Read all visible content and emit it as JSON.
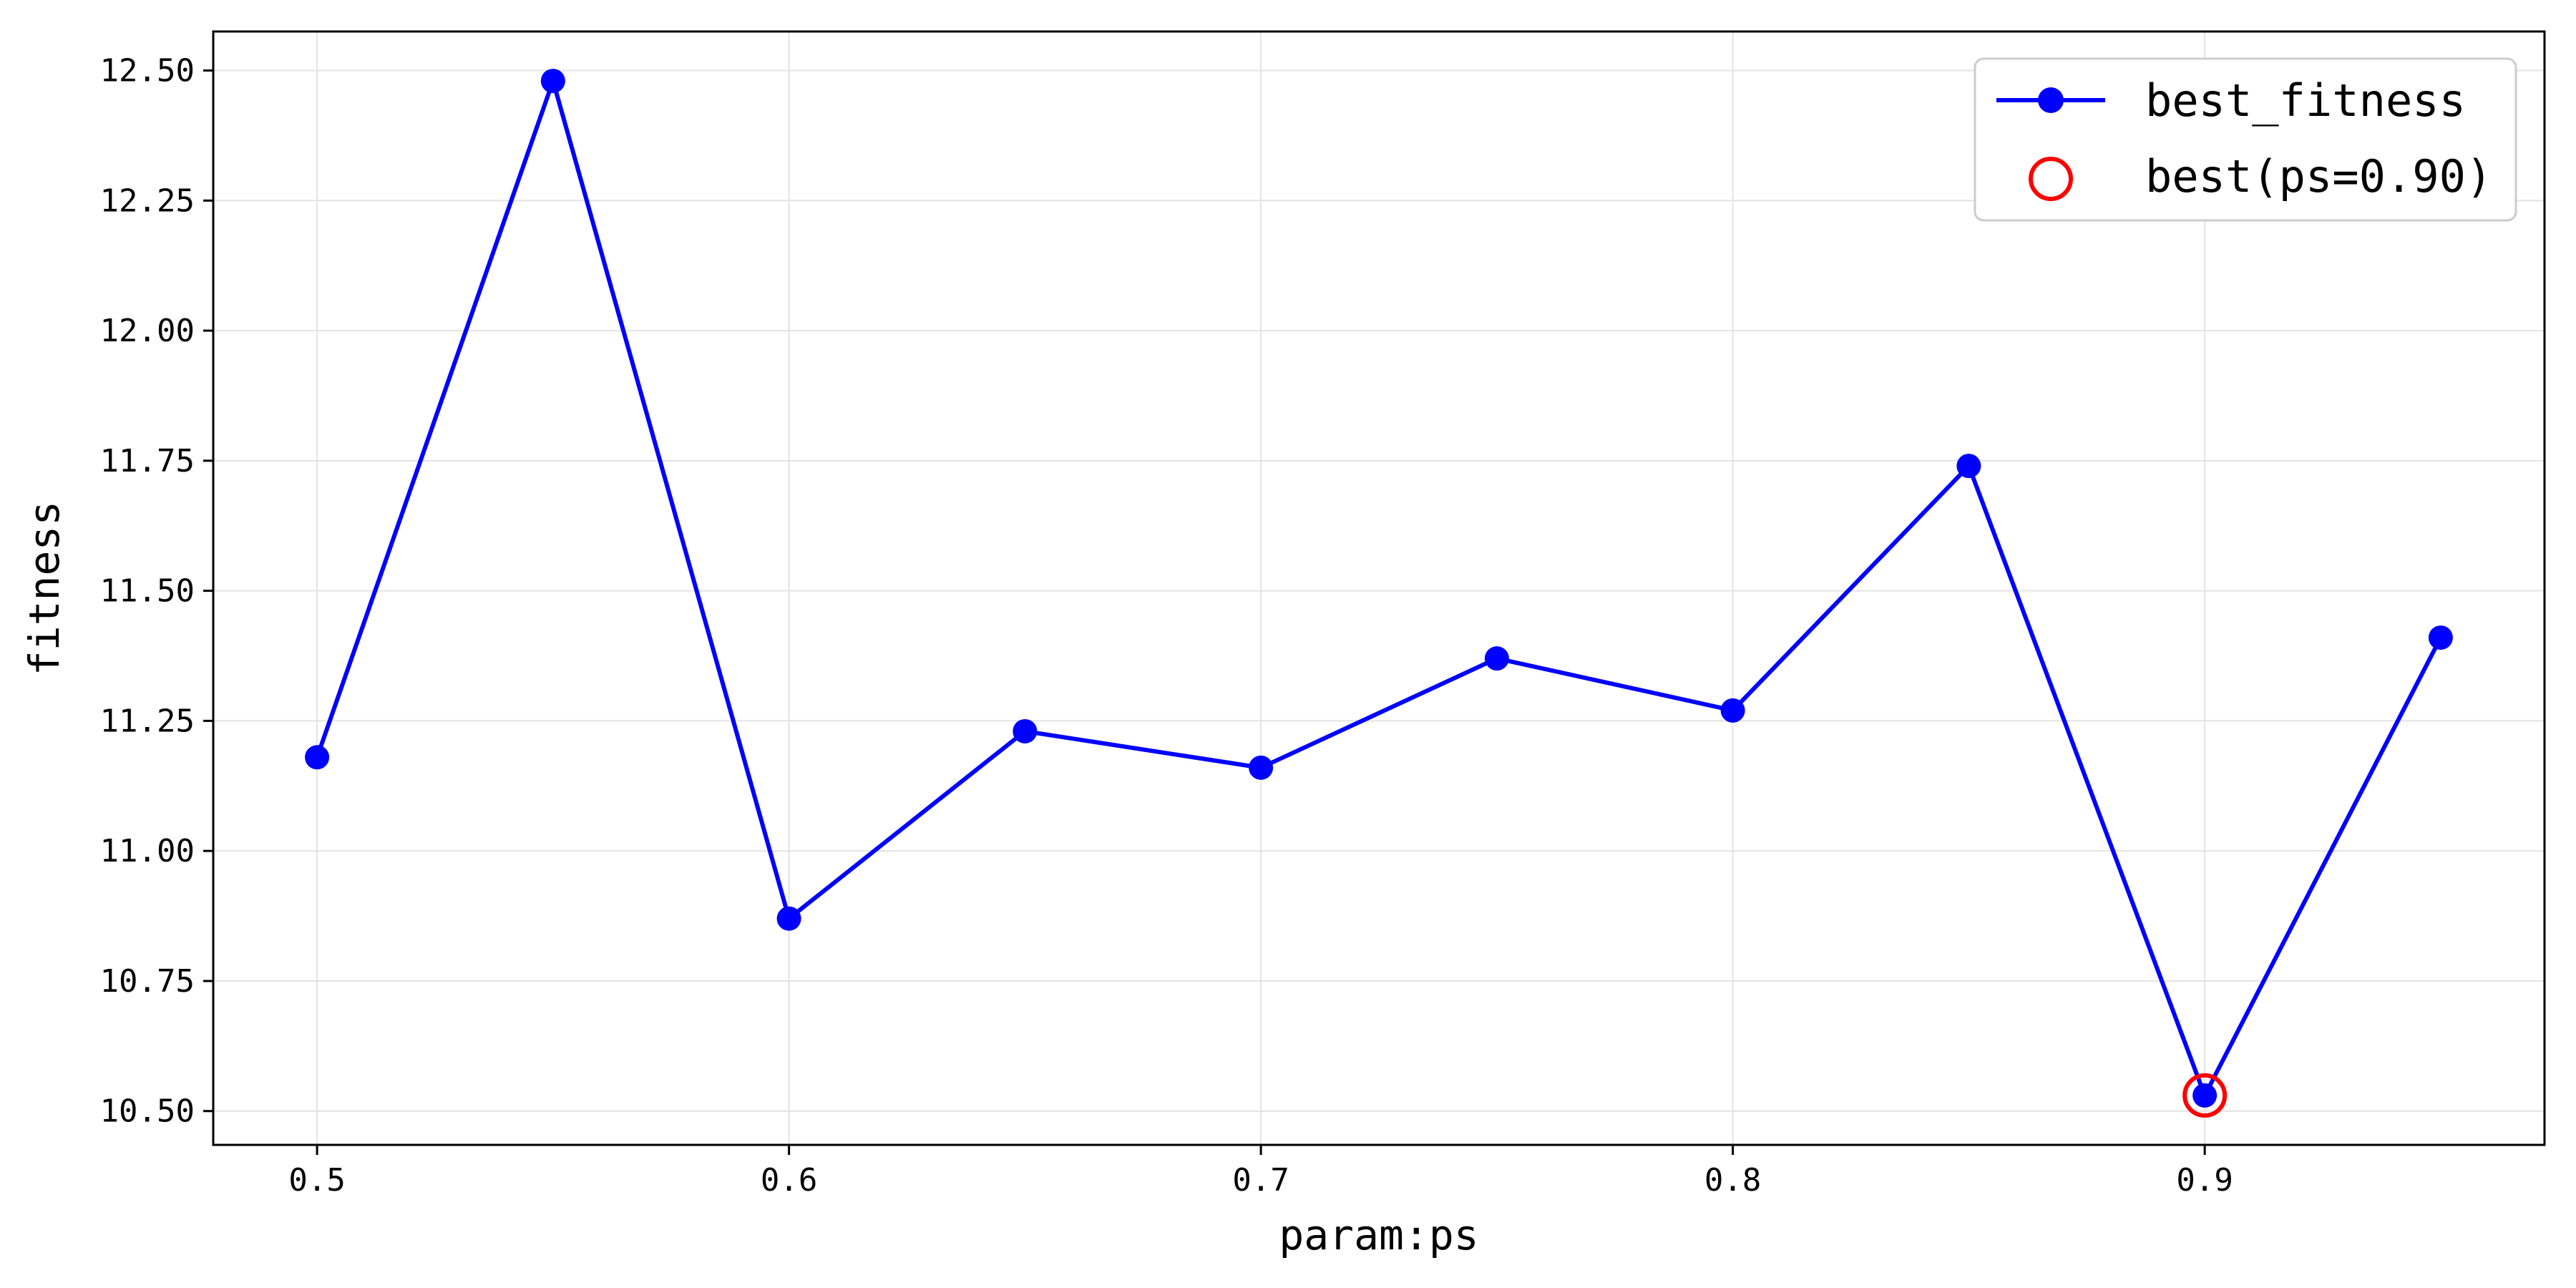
{
  "chart_data": {
    "type": "line",
    "x": [
      0.5,
      0.55,
      0.6,
      0.65,
      0.7,
      0.75,
      0.8,
      0.85,
      0.9,
      0.95
    ],
    "series": [
      {
        "name": "best_fitness",
        "values": [
          11.18,
          12.48,
          10.87,
          11.23,
          11.16,
          11.37,
          11.27,
          11.74,
          10.53,
          11.41
        ],
        "color": "#0000ff",
        "marker": "circle"
      }
    ],
    "highlight": {
      "label": "best(ps=0.90)",
      "x": 0.9,
      "y": 10.53,
      "color": "#ff0000",
      "marker": "open-circle"
    },
    "xlabel": "param:ps",
    "ylabel": "fitness",
    "xlim": [
      0.478,
      0.972
    ],
    "ylim": [
      10.435,
      12.575
    ],
    "xticks": [
      0.5,
      0.6,
      0.7,
      0.8,
      0.9
    ],
    "xtick_labels": [
      "0.5",
      "0.6",
      "0.7",
      "0.8",
      "0.9"
    ],
    "yticks": [
      10.5,
      10.75,
      11.0,
      11.25,
      11.5,
      11.75,
      12.0,
      12.25,
      12.5
    ],
    "ytick_labels": [
      "10.50",
      "10.75",
      "11.00",
      "11.25",
      "11.50",
      "11.75",
      "12.00",
      "12.25",
      "12.50"
    ],
    "grid": true,
    "legend": {
      "position": "top-right",
      "entries": [
        "best_fitness",
        "best(ps=0.90)"
      ]
    }
  }
}
